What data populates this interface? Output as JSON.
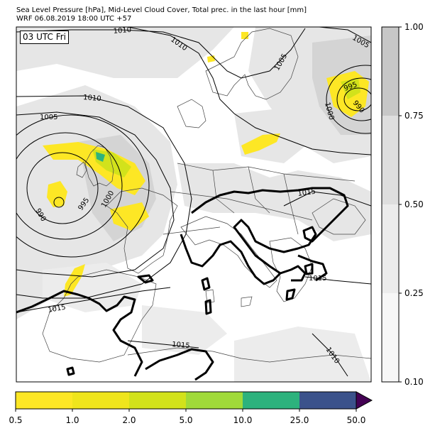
{
  "header": {
    "title_line1": "Sea Level Pressure [hPa], Mid-Level Cloud Cover, Total prec. in the last hour [mm]",
    "title_line2": "WRF 06.08.2019 18:00 UTC +57"
  },
  "map": {
    "time_label": "03 UTC Fri",
    "isobar_labels": [
      "1010",
      "1010",
      "1005",
      "1005",
      "1010",
      "1005",
      "990",
      "995",
      "1000",
      "995",
      "990",
      "1000",
      "1015",
      "1015",
      "1015",
      "1015",
      "1010"
    ],
    "colors": {
      "isobar": "#000000",
      "coast": "#444444",
      "cloud_light": "#e6e6e6",
      "cloud_mid": "#cfcfcf"
    }
  },
  "cloud_colorbar": {
    "ticks": [
      "1.00",
      "0.75",
      "0.50",
      "0.25",
      "0.10"
    ],
    "colors": [
      "#c7c7c7",
      "#dedede",
      "#ececec",
      "#f7f7f7"
    ]
  },
  "precip_colorbar": {
    "ticks": [
      "0.5",
      "1.0",
      "2.0",
      "5.0",
      "10.0",
      "25.0",
      "50.0"
    ],
    "colors": [
      "#fde725",
      "#efe51c",
      "#d2e21b",
      "#a0da39",
      "#2db27d",
      "#3b528b",
      "#440154"
    ]
  }
}
